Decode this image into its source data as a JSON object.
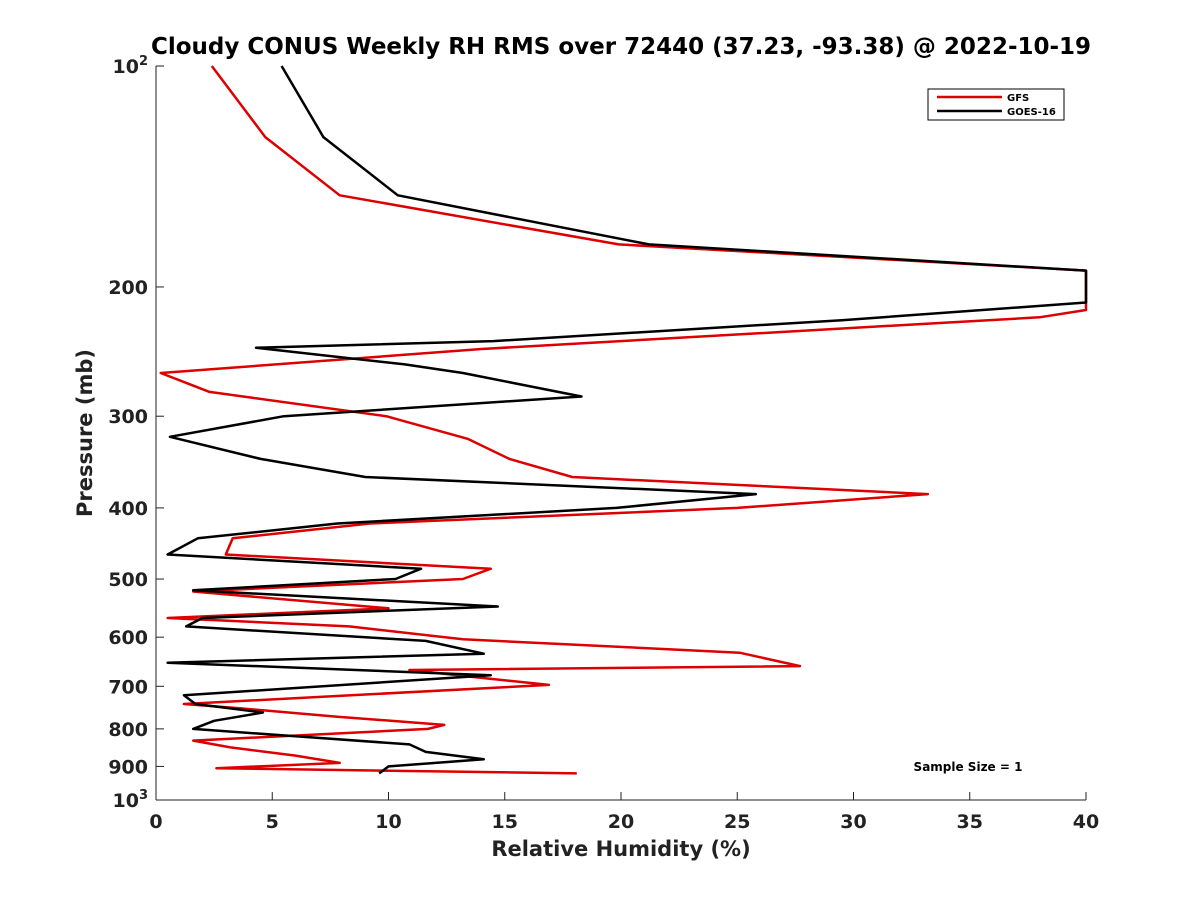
{
  "chart_data": {
    "type": "line",
    "title": "Cloudy CONUS Weekly RH RMS over 72440 (37.23, -93.38) @ 2022-10-19",
    "xlabel": "Relative Humidity (%)",
    "ylabel": "Pressure (mb)",
    "xlim": [
      0,
      40
    ],
    "ylim": [
      100,
      1000
    ],
    "y_scale": "log",
    "y_reversed": true,
    "grid": false,
    "legend_position": "top-right",
    "annotation": "Sample Size = 1",
    "x_ticks": [
      0,
      5,
      10,
      15,
      20,
      25,
      30,
      35,
      40
    ],
    "x_tick_labels": [
      "0",
      "5",
      "10",
      "15",
      "20",
      "25",
      "30",
      "35",
      "40"
    ],
    "y_ticks": [
      100,
      200,
      300,
      400,
      500,
      600,
      700,
      800,
      900,
      1000
    ],
    "y_tick_labels": [
      {
        "base": "10",
        "exp": "2"
      },
      {
        "base": "200",
        "exp": ""
      },
      {
        "base": "300",
        "exp": ""
      },
      {
        "base": "400",
        "exp": ""
      },
      {
        "base": "500",
        "exp": ""
      },
      {
        "base": "600",
        "exp": ""
      },
      {
        "base": "700",
        "exp": ""
      },
      {
        "base": "800",
        "exp": ""
      },
      {
        "base": "900",
        "exp": ""
      },
      {
        "base": "10",
        "exp": "3"
      }
    ],
    "series": [
      {
        "name": "GFS",
        "color": "#dd0000",
        "points": [
          [
            2.4,
            100
          ],
          [
            4.7,
            125
          ],
          [
            7.9,
            150
          ],
          [
            19.9,
            175
          ],
          [
            40.0,
            190
          ],
          [
            40.0,
            215
          ],
          [
            38.0,
            220
          ],
          [
            14.0,
            243
          ],
          [
            0.2,
            262
          ],
          [
            2.3,
            278
          ],
          [
            9.9,
            300
          ],
          [
            13.4,
            322
          ],
          [
            15.2,
            343
          ],
          [
            17.9,
            363
          ],
          [
            33.2,
            383
          ],
          [
            25.0,
            400
          ],
          [
            9.2,
            420
          ],
          [
            3.3,
            440
          ],
          [
            3.0,
            463
          ],
          [
            14.4,
            484
          ],
          [
            13.2,
            500
          ],
          [
            1.6,
            520
          ],
          [
            10.0,
            548
          ],
          [
            0.5,
            565
          ],
          [
            8.3,
            580
          ],
          [
            13.2,
            604
          ],
          [
            25.1,
            630
          ],
          [
            27.7,
            657
          ],
          [
            10.9,
            665
          ],
          [
            13.7,
            680
          ],
          [
            16.9,
            697
          ],
          [
            1.2,
            740
          ],
          [
            3.6,
            750
          ],
          [
            7.8,
            770
          ],
          [
            12.4,
            790
          ],
          [
            11.7,
            800
          ],
          [
            1.6,
            830
          ],
          [
            3.2,
            848
          ],
          [
            6.0,
            870
          ],
          [
            7.9,
            890
          ],
          [
            2.6,
            905
          ],
          [
            18.1,
            920
          ]
        ]
      },
      {
        "name": "GOES-16",
        "color": "#000000",
        "points": [
          [
            5.4,
            100
          ],
          [
            7.2,
            125
          ],
          [
            10.4,
            150
          ],
          [
            21.2,
            175
          ],
          [
            40.0,
            190
          ],
          [
            40.0,
            210
          ],
          [
            29.5,
            222
          ],
          [
            14.5,
            237
          ],
          [
            4.3,
            242
          ],
          [
            10.7,
            255
          ],
          [
            13.2,
            262
          ],
          [
            18.3,
            282
          ],
          [
            5.5,
            300
          ],
          [
            0.6,
            320
          ],
          [
            4.5,
            343
          ],
          [
            9.0,
            363
          ],
          [
            25.8,
            383
          ],
          [
            19.8,
            400
          ],
          [
            7.8,
            420
          ],
          [
            1.8,
            440
          ],
          [
            0.5,
            463
          ],
          [
            11.4,
            484
          ],
          [
            10.3,
            500
          ],
          [
            1.6,
            518
          ],
          [
            14.7,
            545
          ],
          [
            2.0,
            565
          ],
          [
            1.3,
            580
          ],
          [
            11.6,
            607
          ],
          [
            14.1,
            632
          ],
          [
            0.5,
            650
          ],
          [
            14.4,
            676
          ],
          [
            1.2,
            720
          ],
          [
            1.7,
            740
          ],
          [
            4.6,
            760
          ],
          [
            2.5,
            780
          ],
          [
            1.6,
            800
          ],
          [
            10.9,
            840
          ],
          [
            11.6,
            860
          ],
          [
            14.1,
            880
          ],
          [
            10.0,
            900
          ],
          [
            9.8,
            910
          ],
          [
            9.6,
            920
          ]
        ]
      }
    ]
  }
}
